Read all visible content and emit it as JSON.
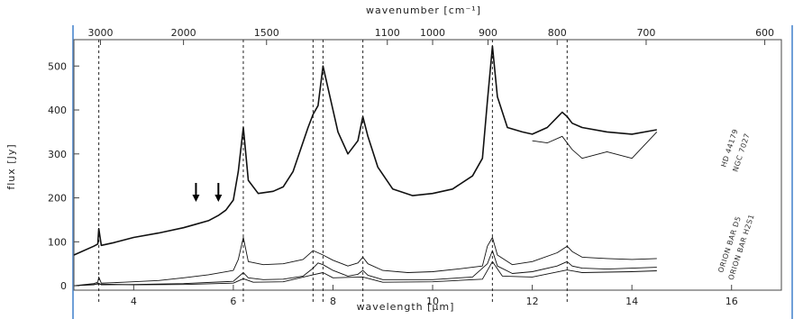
{
  "chart_data": {
    "type": "line",
    "xlabel": "wavelength [μm]",
    "x2label": "wavenumber [cm⁻¹]",
    "ylabel": "flux [Jy]",
    "xlim": [
      2.8,
      17.0
    ],
    "ylim": [
      -10,
      560
    ],
    "grid": false,
    "x_ticks": [
      4,
      6,
      8,
      10,
      12,
      14,
      16
    ],
    "y_ticks": [
      0,
      100,
      200,
      300,
      400,
      500
    ],
    "x2_ticks": [
      3000,
      2000,
      1500,
      1100,
      1000,
      900,
      800,
      700,
      600
    ],
    "x2_tick_labels": [
      "3000",
      "2000",
      "1500",
      "1100",
      "1000",
      "900",
      "800",
      "700",
      "600"
    ],
    "vlines": [
      3.3,
      6.2,
      7.6,
      7.8,
      8.6,
      11.2,
      12.7
    ],
    "arrows_at": [
      5.25,
      5.7
    ],
    "series": [
      {
        "name": "HD 44179",
        "x": [
          2.8,
          3.2,
          3.28,
          3.3,
          3.35,
          3.6,
          4.0,
          4.5,
          5.0,
          5.25,
          5.5,
          5.7,
          5.85,
          6.0,
          6.1,
          6.2,
          6.3,
          6.5,
          6.8,
          7.0,
          7.2,
          7.5,
          7.6,
          7.7,
          7.8,
          7.9,
          8.1,
          8.3,
          8.5,
          8.6,
          8.7,
          8.9,
          9.2,
          9.6,
          10.0,
          10.4,
          10.8,
          11.0,
          11.1,
          11.2,
          11.3,
          11.5,
          11.8,
          12.0,
          12.3,
          12.6,
          12.7,
          12.8,
          13.0,
          13.5,
          14.0,
          14.5
        ],
        "y": [
          70,
          90,
          95,
          130,
          92,
          98,
          110,
          120,
          132,
          140,
          148,
          160,
          172,
          195,
          260,
          360,
          240,
          210,
          215,
          225,
          260,
          360,
          390,
          410,
          500,
          450,
          350,
          300,
          330,
          385,
          340,
          270,
          220,
          205,
          210,
          220,
          250,
          290,
          420,
          545,
          430,
          360,
          350,
          345,
          360,
          395,
          385,
          370,
          360,
          350,
          345,
          355
        ]
      },
      {
        "name": "NGC 7027",
        "x": [
          12.0,
          12.3,
          12.6,
          12.8,
          13.0,
          13.5,
          14.0,
          14.5
        ],
        "y": [
          330,
          325,
          340,
          310,
          290,
          305,
          290,
          350
        ]
      },
      {
        "name": "ORION BAR D5",
        "x": [
          2.8,
          3.2,
          3.28,
          3.3,
          3.35,
          3.8,
          4.5,
          5.0,
          5.5,
          6.0,
          6.1,
          6.2,
          6.3,
          6.6,
          7.0,
          7.4,
          7.6,
          7.7,
          7.8,
          8.0,
          8.3,
          8.5,
          8.6,
          8.7,
          9.0,
          9.5,
          10.0,
          10.5,
          11.0,
          11.1,
          11.2,
          11.3,
          11.6,
          12.0,
          12.5,
          12.7,
          12.8,
          13.0,
          13.5,
          14.0,
          14.5
        ],
        "y": [
          0,
          5,
          8,
          20,
          6,
          8,
          12,
          18,
          25,
          35,
          60,
          110,
          55,
          48,
          50,
          60,
          80,
          75,
          70,
          58,
          45,
          52,
          65,
          50,
          35,
          30,
          32,
          38,
          45,
          90,
          110,
          70,
          48,
          55,
          75,
          90,
          78,
          65,
          62,
          60,
          62
        ]
      },
      {
        "name": "ORION BAR H2S1",
        "x": [
          2.8,
          3.2,
          3.3,
          3.35,
          4.0,
          5.0,
          6.0,
          6.1,
          6.2,
          6.3,
          6.6,
          7.0,
          7.4,
          7.6,
          7.7,
          7.8,
          8.0,
          8.3,
          8.5,
          8.6,
          8.7,
          9.0,
          10.0,
          10.8,
          11.1,
          11.2,
          11.3,
          11.6,
          12.0,
          12.5,
          12.7,
          12.8,
          13.0,
          13.5,
          14.0,
          14.5
        ],
        "y": [
          0,
          2,
          6,
          2,
          3,
          5,
          10,
          20,
          30,
          18,
          14,
          15,
          22,
          40,
          52,
          48,
          35,
          22,
          26,
          35,
          24,
          14,
          14,
          20,
          50,
          80,
          45,
          28,
          32,
          45,
          55,
          45,
          40,
          38,
          40,
          42
        ]
      },
      {
        "name": "",
        "x": [
          2.8,
          3.3,
          4.0,
          5.0,
          6.0,
          6.2,
          6.4,
          7.0,
          7.6,
          7.8,
          8.0,
          8.6,
          9.0,
          10.0,
          11.0,
          11.2,
          11.4,
          12.0,
          12.7,
          13.0,
          14.0,
          14.5
        ],
        "y": [
          0,
          4,
          2,
          3,
          6,
          16,
          8,
          9,
          25,
          30,
          18,
          20,
          8,
          9,
          15,
          55,
          22,
          20,
          36,
          30,
          32,
          34
        ]
      }
    ],
    "series_labels_printed": [
      "HD 44179",
      "NGC 7027",
      "ORION BAR D5",
      "ORION BAR H2S1"
    ]
  }
}
